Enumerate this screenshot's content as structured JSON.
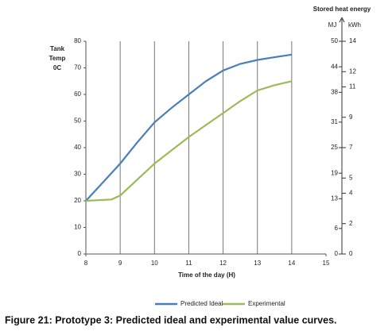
{
  "chart_data": {
    "type": "line",
    "ylabel": [
      "Tank",
      "Temp",
      "0C"
    ],
    "xlabel": "Time of the day (H)",
    "caption": "Figure 21: Prototype 3: Predicted ideal and experimental value curves.",
    "xlim": [
      8,
      15
    ],
    "xticks": [
      8,
      9,
      10,
      11,
      12,
      13,
      14,
      15
    ],
    "ylim": [
      0,
      80
    ],
    "yticks": [
      0,
      10,
      20,
      30,
      40,
      50,
      60,
      70,
      80
    ],
    "grid": "x",
    "legend": "bottom",
    "right_title": "Stored heat energy",
    "right_axes": [
      {
        "label": "MJ",
        "lim": [
          0,
          50
        ],
        "ticks": [
          0,
          6,
          13,
          19,
          25,
          31,
          38,
          44,
          50
        ]
      },
      {
        "label": "kWh",
        "lim": [
          0,
          14
        ],
        "ticks": [
          0,
          2,
          4,
          5,
          7,
          9,
          11,
          12,
          14
        ]
      }
    ],
    "series": [
      {
        "name": "Predicted Ideal",
        "color": "#4a7ebb",
        "x": [
          8,
          8.5,
          9,
          9.5,
          10,
          10.5,
          11,
          11.5,
          12,
          12.5,
          13,
          13.5,
          14
        ],
        "values": [
          20,
          27,
          34,
          42,
          49.5,
          55,
          60,
          65,
          69,
          71.5,
          73,
          74,
          75
        ]
      },
      {
        "name": "Experimental",
        "color": "#9bbb59",
        "x": [
          8,
          8.75,
          9,
          9.25,
          9.5,
          10,
          10.5,
          11,
          11.5,
          12,
          12.5,
          13,
          13.5,
          14
        ],
        "values": [
          20,
          20.5,
          22,
          25,
          28,
          34,
          39,
          44,
          48.5,
          53,
          57.5,
          61.5,
          63.5,
          65
        ]
      }
    ]
  }
}
